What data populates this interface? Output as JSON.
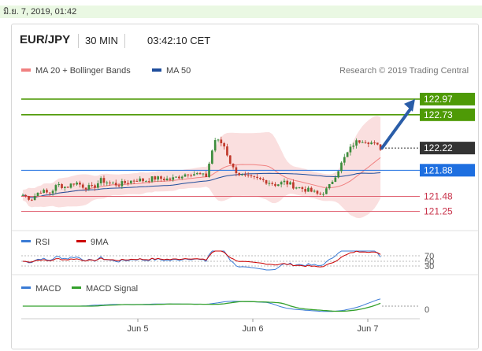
{
  "datebar": {
    "text": "มิ.ย. 7, 2019, 01:42"
  },
  "header": {
    "pair": "EUR/JPY",
    "timeframe": "30 MIN",
    "time": "03:42:10 CET"
  },
  "chart_data": [
    {
      "type": "candlestick",
      "legend": [
        {
          "name": "MA 20 + Bollinger Bands",
          "color": "#f08080"
        },
        {
          "name": "MA 50",
          "color": "#1f4e9c"
        }
      ],
      "credit": "Research © 2019 Trading Central",
      "ylim": [
        121.1,
        123.15
      ],
      "x_ticks": [
        "Jun 5",
        "Jun 6",
        "Jun 7"
      ],
      "levels": [
        {
          "label": "122.97",
          "value": 122.97,
          "color": "#4e9a06",
          "kind": "target"
        },
        {
          "label": "122.73",
          "value": 122.73,
          "color": "#4e9a06",
          "kind": "target"
        },
        {
          "label": "122.22",
          "value": 122.22,
          "color": "#333333",
          "kind": "last"
        },
        {
          "label": "121.88",
          "value": 121.88,
          "color": "#1e6fe0",
          "kind": "pivot"
        },
        {
          "label": "121.48",
          "value": 121.48,
          "color": "#e06070",
          "kind": "support"
        },
        {
          "label": "121.25",
          "value": 121.25,
          "color": "#e06070",
          "kind": "support"
        }
      ],
      "projection": {
        "from": 122.22,
        "to": 122.97
      },
      "close_anchors": [
        121.5,
        121.44,
        121.57,
        121.52,
        121.66,
        121.62,
        121.7,
        121.63,
        121.61,
        121.73,
        121.68,
        121.66,
        121.7,
        121.74,
        121.72,
        121.76,
        121.75,
        121.74,
        121.79,
        121.84,
        121.82,
        121.78,
        122.35,
        122.28,
        121.92,
        121.8,
        121.76,
        121.74,
        121.71,
        121.66,
        121.7,
        121.64,
        121.6,
        121.56,
        121.5,
        121.6,
        121.85,
        122.1,
        122.3,
        122.35,
        122.3,
        122.22
      ]
    },
    {
      "type": "line",
      "legend": [
        {
          "name": "RSI",
          "color": "#3a7bd5"
        },
        {
          "name": "9MA",
          "color": "#cc0000"
        }
      ],
      "y_ticks": [
        "70",
        "50",
        "30"
      ]
    },
    {
      "type": "line",
      "legend": [
        {
          "name": "MACD",
          "color": "#3a7bd5"
        },
        {
          "name": "MACD Signal",
          "color": "#33a02c"
        }
      ],
      "y_ticks": [
        "0"
      ]
    }
  ]
}
